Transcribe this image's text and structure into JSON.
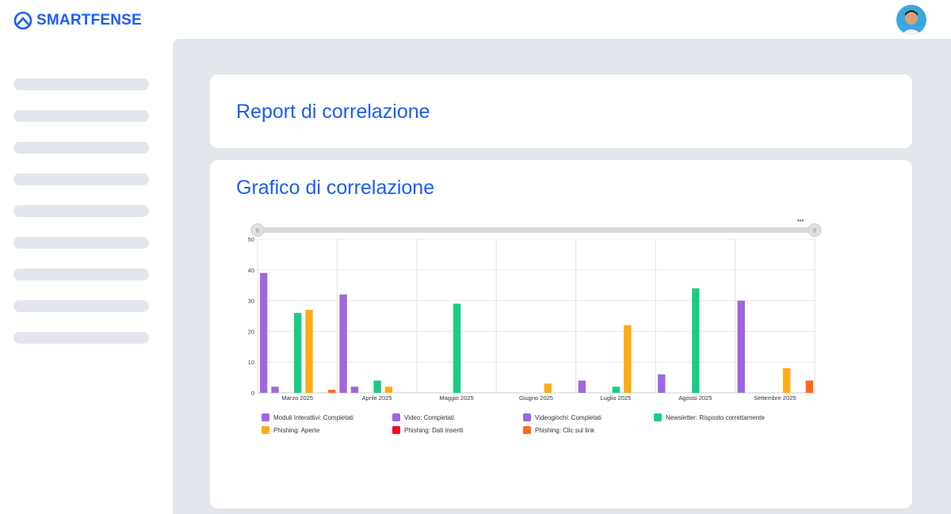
{
  "brand": {
    "name": "SMARTFENSE",
    "color": "#1a5cff"
  },
  "header": {
    "avatar": "user-avatar"
  },
  "report_card": {
    "title": "Report di correlazione"
  },
  "chart_card": {
    "title": "Grafico di correlazione",
    "menu": "•••"
  },
  "chart_data": {
    "type": "bar",
    "categories": [
      "Marzo 2025",
      "Aprile 2025",
      "Maggio 2025",
      "Giugno 2025",
      "Luglio 2025",
      "Agosto 2025",
      "Settembre 2025"
    ],
    "ylim": [
      0,
      50
    ],
    "yticks": [
      0,
      10,
      20,
      30,
      40,
      50
    ],
    "grid": true,
    "legend": "bottom",
    "series": [
      {
        "name": "Moduli Interattivi: Completati",
        "color": "#a066dc",
        "values": [
          39,
          32,
          0,
          0,
          4,
          6,
          30
        ]
      },
      {
        "name": "Video: Completati",
        "color": "#a066dc",
        "values": [
          2,
          2,
          0,
          0,
          0,
          0,
          0
        ]
      },
      {
        "name": "Videogiochi: Completati",
        "color": "#a066dc",
        "values": [
          0,
          0,
          0,
          0,
          0,
          0,
          0
        ]
      },
      {
        "name": "Newsletter: Risposto correttamente",
        "color": "#19cc84",
        "values": [
          26,
          4,
          29,
          0,
          2,
          34,
          0
        ]
      },
      {
        "name": "Phishing: Aperte",
        "color": "#ffac14",
        "values": [
          27,
          2,
          0,
          3,
          22,
          0,
          8
        ]
      },
      {
        "name": "Phishing: Dati inseriti",
        "color": "#f5091c",
        "values": [
          0,
          0,
          0,
          0,
          0,
          0,
          0
        ]
      },
      {
        "name": "Phishing: Clic sul link",
        "color": "#ff6a1a",
        "values": [
          1,
          0,
          0,
          0,
          0,
          0,
          4
        ]
      }
    ]
  }
}
